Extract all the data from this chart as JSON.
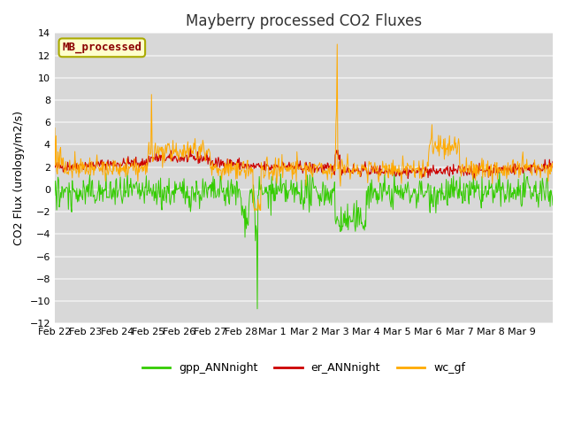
{
  "title": "Mayberry processed CO2 Fluxes",
  "ylabel": "CO2 Flux (urology/m2/s)",
  "ylim": [
    -12,
    14
  ],
  "n_days": 16,
  "n_per_day": 48,
  "fig_bg_color": "#ffffff",
  "plot_bg_color": "#d8d8d8",
  "grid_color": "#f0f0f0",
  "line_green": "#33cc00",
  "line_red": "#cc0000",
  "line_orange": "#ffaa00",
  "legend_labels": [
    "gpp_ANNnight",
    "er_ANNnight",
    "wc_gf"
  ],
  "inset_label": "MB_processed",
  "inset_label_color": "#8b0000",
  "inset_bg": "#ffffcc",
  "inset_border": "#aaaa00",
  "x_tick_labels": [
    "Feb 22",
    "Feb 23",
    "Feb 24",
    "Feb 25",
    "Feb 26",
    "Feb 27",
    "Feb 28",
    "Mar 1",
    "Mar 2",
    "Mar 3",
    "Mar 4",
    "Mar 5",
    "Mar 6",
    "Mar 7",
    "Mar 8",
    "Mar 9"
  ],
  "title_fontsize": 12,
  "axis_fontsize": 9,
  "tick_fontsize": 8,
  "legend_fontsize": 9
}
